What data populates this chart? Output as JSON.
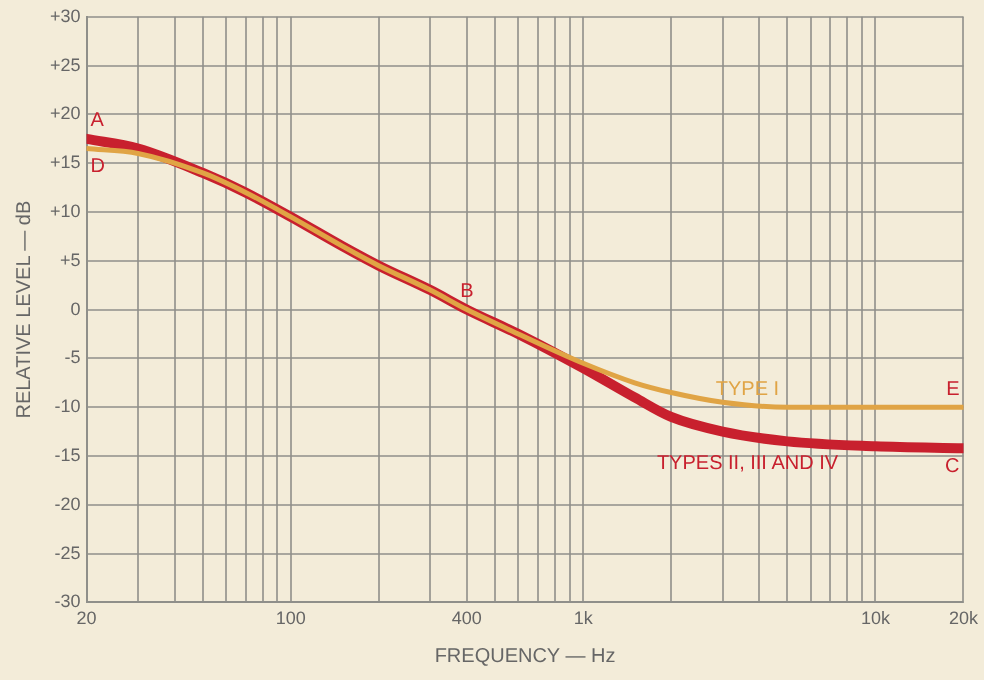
{
  "chart_data": {
    "type": "line",
    "xlabel": "FREQUENCY — Hz",
    "ylabel": "RELATIVE LEVEL — dB",
    "log": "x",
    "grid": true,
    "legend": false,
    "marker": "none",
    "line_style": "solid",
    "xlim": [
      20,
      20000
    ],
    "ylim": [
      -30,
      30
    ],
    "xticks": [
      20,
      {
        "value": 30,
        "label": null
      },
      {
        "value": 40,
        "label": null
      },
      {
        "value": 50,
        "label": null
      },
      {
        "value": 60,
        "label": null
      },
      {
        "value": 70,
        "label": null
      },
      {
        "value": 80,
        "label": null
      },
      {
        "value": 90,
        "label": null
      },
      100,
      {
        "value": 200,
        "label": null
      },
      {
        "value": 300,
        "label": null
      },
      400,
      {
        "value": 500,
        "label": null
      },
      {
        "value": 600,
        "label": null
      },
      {
        "value": 700,
        "label": null
      },
      {
        "value": 800,
        "label": null
      },
      {
        "value": 900,
        "label": null
      },
      {
        "value": 1000,
        "label": "1k"
      },
      {
        "value": 2000,
        "label": null
      },
      {
        "value": 3000,
        "label": null
      },
      {
        "value": 4000,
        "label": null
      },
      {
        "value": 5000,
        "label": null
      },
      {
        "value": 6000,
        "label": null
      },
      {
        "value": 7000,
        "label": null
      },
      {
        "value": 8000,
        "label": null
      },
      {
        "value": 9000,
        "label": null
      },
      {
        "value": 10000,
        "label": "10k"
      },
      {
        "value": 20000,
        "label": "20k"
      }
    ],
    "yticks": [
      -30,
      -25,
      -20,
      -15,
      -10,
      -5,
      0,
      {
        "value": 5,
        "label": "+5"
      },
      {
        "value": 10,
        "label": "+10"
      },
      {
        "value": 15,
        "label": "+15"
      },
      {
        "value": 20,
        "label": "+20"
      },
      {
        "value": 25,
        "label": "+25"
      },
      {
        "value": 30,
        "label": "+30"
      }
    ],
    "x": [
      20,
      30,
      50,
      70,
      100,
      150,
      200,
      300,
      400,
      600,
      1000,
      1500,
      2000,
      3000,
      5000,
      10000,
      20000
    ],
    "series": [
      {
        "name": "TYPE I",
        "color": "#e0a445",
        "values": [
          16.5,
          16,
          14,
          12,
          9.5,
          6.5,
          4.5,
          2,
          0,
          -2.5,
          -5.5,
          -7.5,
          -8.5,
          -9.5,
          -10,
          -10,
          -10
        ]
      },
      {
        "name": "TYPES II, III AND IV",
        "color": "#c8202e",
        "values": [
          17.5,
          16.5,
          14,
          12,
          9.5,
          6.5,
          4.5,
          2,
          0,
          -2.5,
          -6,
          -9,
          -11,
          -12.5,
          -13.5,
          -14,
          -14.2
        ]
      }
    ],
    "annotations": [
      {
        "text": "A",
        "x": 20,
        "y": 17.5
      },
      {
        "text": "D",
        "x": 20,
        "y": 16.5
      },
      {
        "text": "B",
        "x": 400,
        "y": 0
      },
      {
        "text": "E",
        "x": 20000,
        "y": -10
      },
      {
        "text": "C",
        "x": 20000,
        "y": -14.2
      }
    ]
  }
}
